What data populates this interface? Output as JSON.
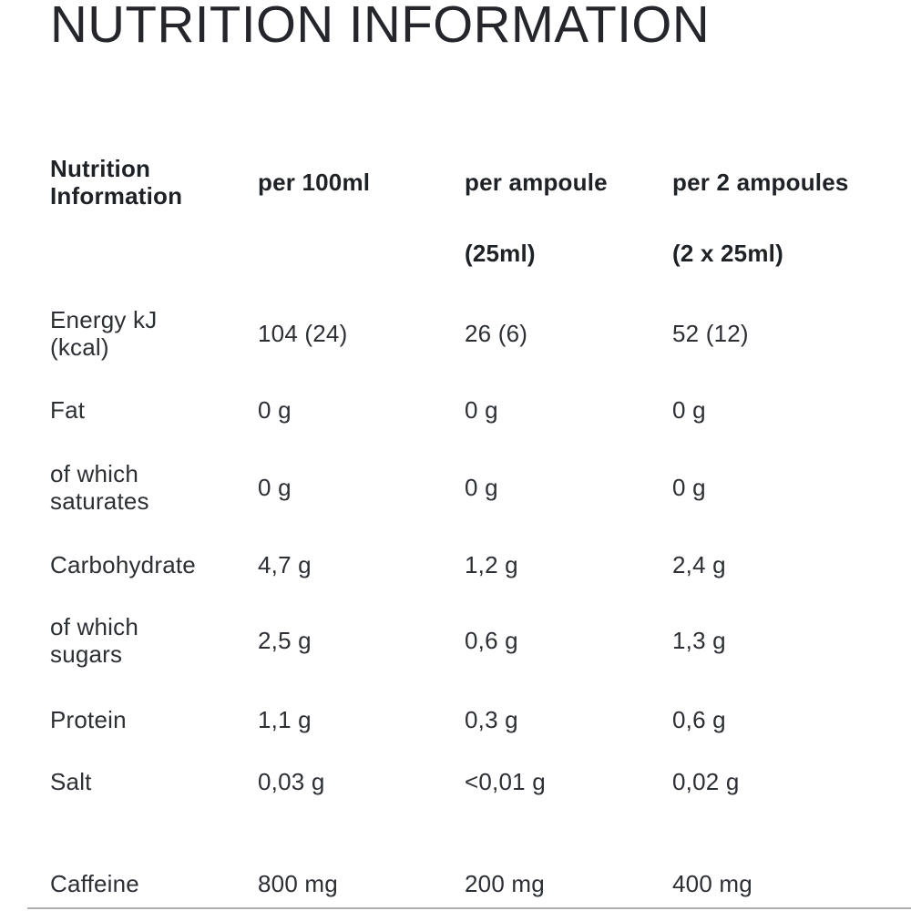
{
  "page": {
    "title": "NUTRITION INFORMATION"
  },
  "table": {
    "header": {
      "label": "Nutrition Information",
      "columns": [
        "per 100ml",
        "per ampoule",
        "per 2 ampoules"
      ],
      "subcolumns": [
        "",
        "(25ml)",
        "(2 x 25ml)"
      ]
    },
    "rows": [
      {
        "label": "Energy kJ (kcal)",
        "values": [
          "104 (24)",
          "26 (6)",
          "52 (12)"
        ]
      },
      {
        "label": "Fat",
        "values": [
          "0 g",
          "0 g",
          "0 g"
        ]
      },
      {
        "label": "of which saturates",
        "values": [
          "0 g",
          "0 g",
          "0 g"
        ]
      },
      {
        "label": "Carbohydrate",
        "values": [
          "4,7 g",
          "1,2 g",
          "2,4 g"
        ]
      },
      {
        "label": "of which sugars",
        "values": [
          "2,5 g",
          "0,6 g",
          "1,3 g"
        ]
      },
      {
        "label": "Protein",
        "values": [
          "1,1 g",
          "0,3 g",
          "0,6 g"
        ]
      },
      {
        "label": "Salt",
        "values": [
          "0,03 g",
          "<0,01 g",
          "0,02 g"
        ]
      },
      {
        "label": "Caffeine",
        "values": [
          "800 mg",
          "200 mg",
          "400 mg"
        ]
      }
    ]
  },
  "colors": {
    "background": "#ffffff",
    "text": "#2c2f34",
    "header_text": "#1e2126",
    "divider": "#aeb0b2"
  }
}
